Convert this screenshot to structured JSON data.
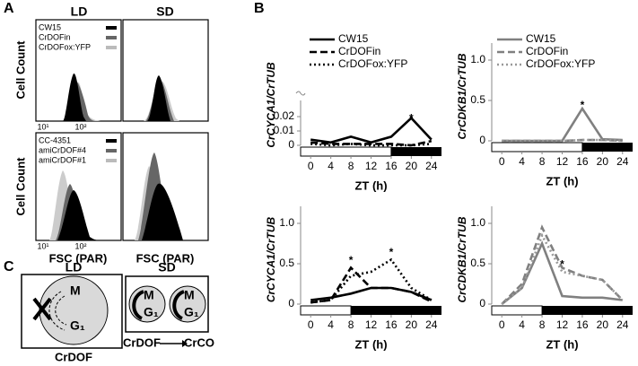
{
  "labels": [
    "A",
    "B",
    "C"
  ],
  "panel_a": {
    "ld": "LD",
    "sd": "SD",
    "y_label": "Cell Count",
    "x_label": "FSC (PAR)",
    "ticks": [
      "10¹",
      "10²"
    ],
    "legend_top": [
      "CW15",
      "CrDOFin",
      "CrDOFox:YFP"
    ],
    "legend_bottom": [
      "CC-4351",
      "amiCrDOF#4",
      "amiCrDOF#1"
    ]
  },
  "panel_c": {
    "ld": "LD",
    "sd": "SD",
    "m": "M",
    "g1": "G₁",
    "ld_gene": "CrDOF",
    "sd_from": "CrDOF",
    "sd_to": "CrCO"
  },
  "chart_data": [
    {
      "type": "line",
      "ylabel": "CrCYCA1/CrTUB",
      "xlabel": "ZT (h)",
      "x": [
        0,
        4,
        8,
        12,
        16,
        20,
        24
      ],
      "xlim": [
        -2,
        26
      ],
      "xticks": [
        0,
        4,
        8,
        12,
        16,
        20,
        24
      ],
      "ylim": [
        0,
        0.025
      ],
      "yticks": [
        0,
        0.01,
        0.02
      ],
      "dark_start": 16,
      "legend": true,
      "series": [
        {
          "name": "CW15",
          "color": "#000000",
          "style": "solid",
          "values": [
            0.004,
            0.002,
            0.006,
            0.002,
            0.006,
            0.019,
            0.004
          ]
        },
        {
          "name": "CrDOFin",
          "color": "#000000",
          "style": "dash",
          "values": [
            0.002,
            0.001,
            0.001,
            0.001,
            0.001,
            0.0,
            0.003
          ]
        },
        {
          "name": "CrDOFox:YFP",
          "color": "#000000",
          "style": "dot",
          "values": [
            0.001,
            0.0,
            0.001,
            0.0,
            0.0,
            0.0,
            0.001
          ]
        }
      ],
      "annotations": [
        {
          "text": "*",
          "x": 20,
          "y": 0.021
        }
      ]
    },
    {
      "type": "line",
      "ylabel": "CrCDKB1/CrTUB",
      "xlabel": "ZT (h)",
      "x": [
        0,
        4,
        8,
        12,
        16,
        20,
        24
      ],
      "xlim": [
        -2,
        26
      ],
      "xticks": [
        0,
        4,
        8,
        12,
        16,
        20,
        24
      ],
      "ylim": [
        0,
        1.1
      ],
      "yticks": [
        0,
        0.5,
        {
          "value": 1,
          "label": "1.0"
        }
      ],
      "dark_start": 16,
      "legend": true,
      "series": [
        {
          "name": "CW15",
          "color": "#808080",
          "style": "solid",
          "values": [
            0,
            0,
            0,
            0,
            0.4,
            0.02,
            0.01
          ]
        },
        {
          "name": "CrDOFin",
          "color": "#808080",
          "style": "dash",
          "values": [
            0,
            0,
            0,
            0,
            0.01,
            0.01,
            0
          ]
        },
        {
          "name": "CrDOFox:YFP",
          "color": "#999999",
          "style": "dot",
          "values": [
            0,
            0,
            0,
            0,
            0.01,
            0.01,
            0
          ]
        }
      ],
      "annotations": [
        {
          "text": "*",
          "x": 16,
          "y": 0.48
        }
      ]
    },
    {
      "type": "line",
      "ylabel": "CrCYCA1/CrTUB",
      "xlabel": "ZT (h)",
      "x": [
        0,
        4,
        8,
        12,
        16,
        20,
        24
      ],
      "xlim": [
        -2,
        26
      ],
      "xticks": [
        0,
        4,
        8,
        12,
        16,
        20,
        24
      ],
      "ylim": [
        0,
        1.1
      ],
      "yticks": [
        0,
        0.5,
        {
          "value": 1,
          "label": "1.0"
        }
      ],
      "dark_start": 8,
      "legend": false,
      "series": [
        {
          "name": "CW15",
          "color": "#000000",
          "style": "solid",
          "values": [
            0.05,
            0.08,
            0.13,
            0.2,
            0.2,
            0.15,
            0.05
          ]
        },
        {
          "name": "CrDOFin",
          "color": "#000000",
          "style": "dash",
          "values": [
            0.02,
            0.05,
            0.45,
            0.2,
            0.2,
            0.15,
            0.03
          ]
        },
        {
          "name": "CrDOFox:YFP",
          "color": "#000000",
          "style": "dot",
          "values": [
            0.02,
            0.05,
            0.35,
            0.4,
            0.55,
            0.2,
            0.05
          ]
        }
      ],
      "annotations": [
        {
          "text": "*",
          "x": 8,
          "y": 0.58
        },
        {
          "text": "*",
          "x": 16,
          "y": 0.68
        }
      ]
    },
    {
      "type": "line",
      "ylabel": "CrCDKB1/CrTUB",
      "xlabel": "ZT (h)",
      "x": [
        0,
        4,
        8,
        12,
        16,
        20,
        24
      ],
      "xlim": [
        -2,
        26
      ],
      "xticks": [
        0,
        4,
        8,
        12,
        16,
        20,
        24
      ],
      "ylim": [
        0,
        1.1
      ],
      "yticks": [
        0,
        0.5,
        {
          "value": 1,
          "label": "1.0"
        }
      ],
      "dark_start": 8,
      "legend": false,
      "series": [
        {
          "name": "CW15",
          "color": "#808080",
          "style": "solid",
          "values": [
            0,
            0.2,
            0.75,
            0.1,
            0.08,
            0.08,
            0.05
          ]
        },
        {
          "name": "CrDOFin",
          "color": "#808080",
          "style": "dash",
          "values": [
            0,
            0.25,
            0.95,
            0.45,
            0.35,
            0.3,
            0.05
          ]
        },
        {
          "name": "CrDOFox:YFP",
          "color": "#999999",
          "style": "dot",
          "values": [
            0,
            0.2,
            0.85,
            0.4,
            0.35,
            0.3,
            0.05
          ]
        }
      ],
      "annotations": [
        {
          "text": "*",
          "x": 12,
          "y": 0.53
        }
      ]
    }
  ]
}
